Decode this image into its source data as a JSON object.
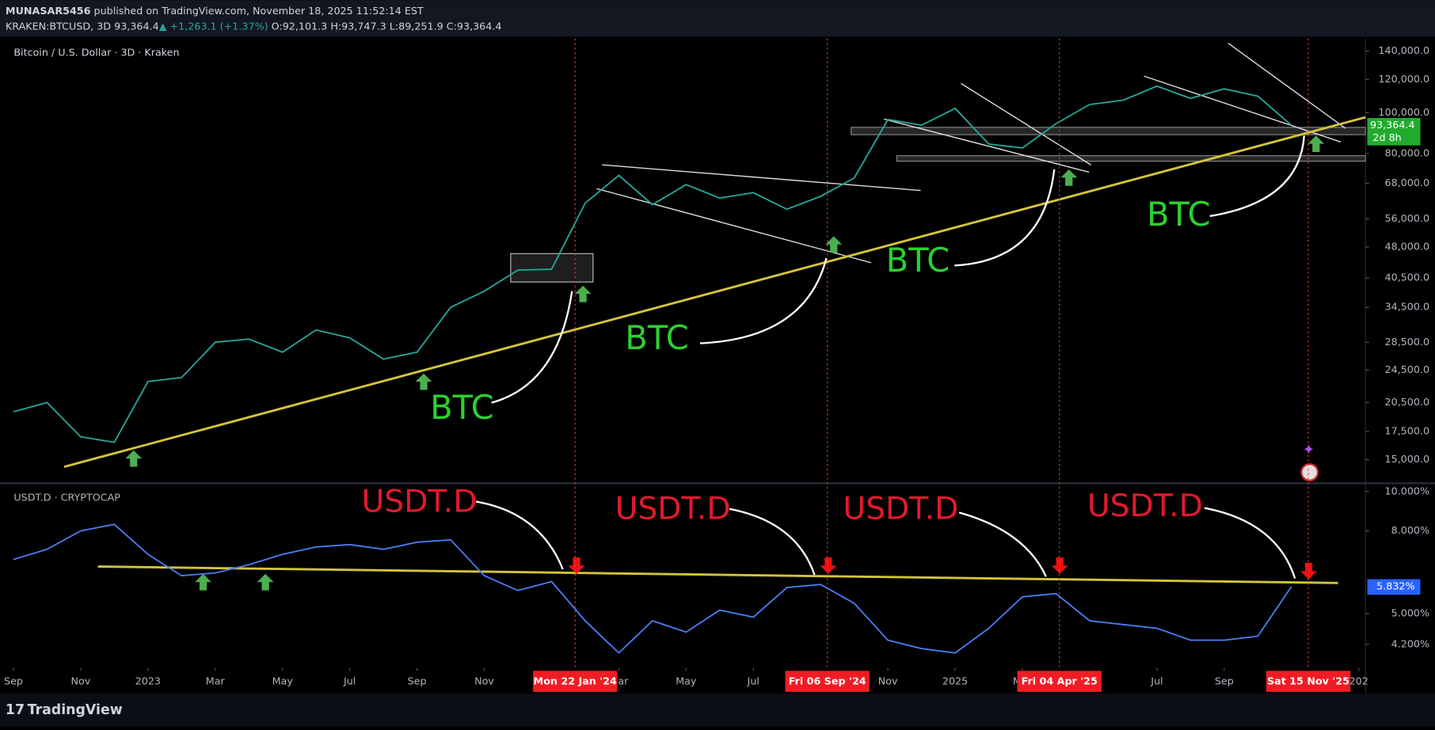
{
  "header": {
    "author": "MUNASAR5456",
    "published": "published on TradingView.com, November 18, 2025 11:52:14 EST",
    "symbol": "KRAKEN:BTCUSD, 3D",
    "price": "93,364.4",
    "change": "▲ +1,263.1 (+1.37%)",
    "open": "O:92,101.3",
    "high": "H:93,747.3",
    "low": "L:89,251.9",
    "close": "C:93,364.4"
  },
  "xaxis": {
    "xlim": [
      -0.4,
      40.2
    ],
    "xticks": [
      {
        "value": 0,
        "label": "Sep"
      },
      {
        "value": 2,
        "label": "Nov"
      },
      {
        "value": 4,
        "label": "2023"
      },
      {
        "value": 6,
        "label": "Mar"
      },
      {
        "value": 8,
        "label": "May"
      },
      {
        "value": 10,
        "label": "Jul"
      },
      {
        "value": 12,
        "label": "Sep"
      },
      {
        "value": 14,
        "label": "Nov"
      },
      {
        "value": 18,
        "label": "Mar"
      },
      {
        "value": 20,
        "label": "May"
      },
      {
        "value": 22,
        "label": "Jul"
      },
      {
        "value": 26,
        "label": "Nov"
      },
      {
        "value": 28,
        "label": "2025"
      },
      {
        "value": 30,
        "label": "Mar"
      },
      {
        "value": 34,
        "label": "Jul"
      },
      {
        "value": 36,
        "label": "Sep"
      },
      {
        "value": 40,
        "label": "202"
      }
    ],
    "markers": [
      {
        "value": 16.7,
        "label": "Mon 22 Jan '24"
      },
      {
        "value": 24.2,
        "label": "Fri 06 Sep '24"
      },
      {
        "value": 31.1,
        "label": "Fri 04 Apr '25"
      },
      {
        "value": 38.5,
        "label": "Sat 15 Nov '25"
      }
    ]
  },
  "chart_data": [
    {
      "type": "line",
      "title": "Bitcoin / U.S. Dollar · 3D · Kraken",
      "log": true,
      "color": "#26a69a",
      "x": [
        0,
        1,
        2,
        3,
        4,
        5,
        6,
        7,
        8,
        9,
        10,
        11,
        12,
        13,
        14,
        15,
        16,
        17,
        18,
        19,
        20,
        21,
        22,
        23,
        24,
        25,
        26,
        27,
        28,
        29,
        30,
        31,
        32,
        33,
        34,
        35,
        36,
        37,
        38
      ],
      "series": [
        {
          "color": "#26a69a",
          "values": [
            19500,
            20500,
            17000,
            16500,
            23000,
            23500,
            28500,
            29000,
            27000,
            30500,
            29200,
            26000,
            27000,
            34500,
            37700,
            42300,
            42500,
            61000,
            71000,
            60500,
            67500,
            62700,
            64600,
            59000,
            63300,
            70000,
            96400,
            93400,
            102400,
            84300,
            82500,
            94200,
            104600,
            107100,
            115700,
            108200,
            114000,
            109500,
            93364.4
          ]
        }
      ],
      "ylim": [
        13250,
        150000
      ],
      "yticks": [
        {
          "value": 140000,
          "label": "140,000.0"
        },
        {
          "value": 120000,
          "label": "120,000.0"
        },
        {
          "value": 100000,
          "label": "100,000.0"
        },
        {
          "value": 80000,
          "label": "80,000.0"
        },
        {
          "value": 68000,
          "label": "68,000.0"
        },
        {
          "value": 56000,
          "label": "56,000.0"
        },
        {
          "value": 48000,
          "label": "48,000.0"
        },
        {
          "value": 40500,
          "label": "40,500.0"
        },
        {
          "value": 34500,
          "label": "34,500.0"
        },
        {
          "value": 28500,
          "label": "28,500.0"
        },
        {
          "value": 24500,
          "label": "24,500.0"
        },
        {
          "value": 20500,
          "label": "20,500.0"
        },
        {
          "value": 17500,
          "label": "17,500.0"
        },
        {
          "value": 15000,
          "label": "15,000.0"
        }
      ],
      "last_price": {
        "value": 93364.4,
        "label": "93,364.4"
      },
      "countdown": "2d 8h",
      "annotations": [
        "BTC",
        "BTC",
        "BTC",
        "BTC"
      ]
    },
    {
      "type": "line",
      "title": "USDT.D · CRYPTOCAP",
      "log": true,
      "color": "#4a7cf0",
      "x": [
        0,
        1,
        2,
        3,
        4,
        5,
        6,
        7,
        8,
        9,
        10,
        11,
        12,
        13,
        14,
        15,
        16,
        17,
        18,
        19,
        20,
        21,
        22,
        23,
        24,
        25,
        26,
        27,
        28,
        29,
        30,
        31,
        32,
        33,
        34,
        35,
        36,
        37,
        38
      ],
      "series": [
        {
          "color": "#4a7cf0",
          "values": [
            6.8,
            7.2,
            8.0,
            8.3,
            7.0,
            6.2,
            6.3,
            6.6,
            7.0,
            7.3,
            7.4,
            7.2,
            7.5,
            7.6,
            6.2,
            5.7,
            6.0,
            4.8,
            4.0,
            4.8,
            4.5,
            5.1,
            4.9,
            5.8,
            5.9,
            5.3,
            4.3,
            4.1,
            4.0,
            4.6,
            5.5,
            5.6,
            4.8,
            4.7,
            4.6,
            4.3,
            4.3,
            4.4,
            5.832
          ]
        }
      ],
      "ylim": [
        3.67,
        10.37
      ],
      "yticks": [
        {
          "value": 10,
          "label": "10.000%"
        },
        {
          "value": 8,
          "label": "8.000%"
        },
        {
          "value": 5,
          "label": "5.000%"
        },
        {
          "value": 4.2,
          "label": "4.200%"
        }
      ],
      "last_price": {
        "value": 5.832,
        "label": "5.832%"
      },
      "annotations": [
        "USDT.D",
        "USDT.D",
        "USDT.D",
        "USDT.D"
      ]
    }
  ],
  "footer": "TradingView"
}
